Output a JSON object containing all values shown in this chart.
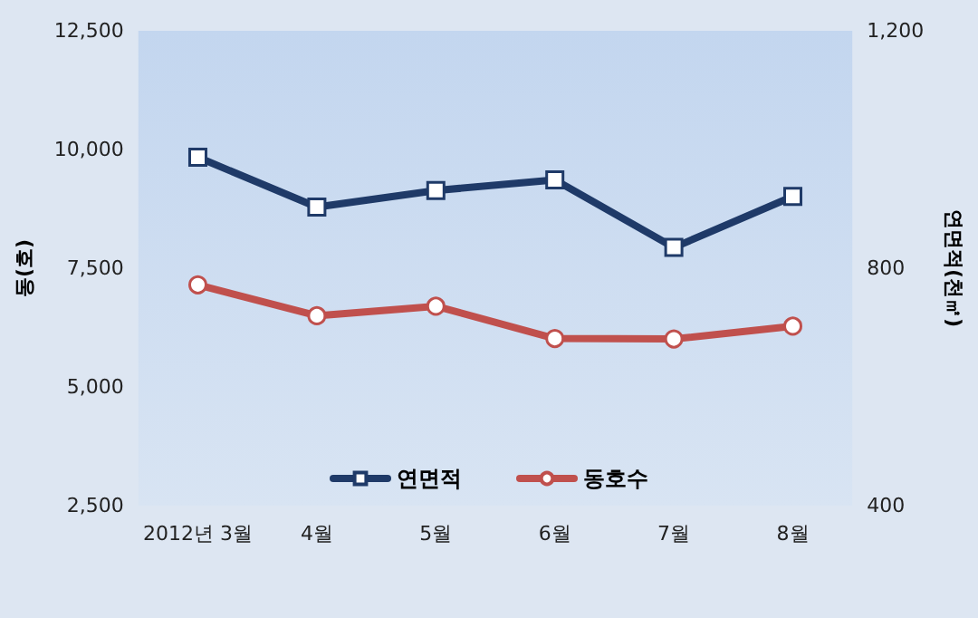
{
  "chart_data": {
    "type": "line",
    "categories": [
      "2012년 3월",
      "4월",
      "5월",
      "6월",
      "7월",
      "8월"
    ],
    "ylabel": "동(호)",
    "y2label": "연면적(천㎡)",
    "ylim": [
      2500,
      12500
    ],
    "yticks": [
      {
        "value": 2500,
        "label": "2,500"
      },
      {
        "value": 5000,
        "label": "5,000"
      },
      {
        "value": 7500,
        "label": "7,500"
      },
      {
        "value": 10000,
        "label": "10,000"
      },
      {
        "value": 12500,
        "label": "12,500"
      }
    ],
    "y2lim": [
      400,
      1200
    ],
    "y2ticks": [
      {
        "value": 400,
        "label": "400"
      },
      {
        "value": 800,
        "label": "800"
      },
      {
        "value": 1200,
        "label": "1,200"
      }
    ],
    "series": [
      {
        "name": "연면적",
        "color": "#1f3a68",
        "axis": "y2",
        "marker": "square",
        "values": [
          987,
          903,
          931,
          949,
          835,
          921
        ]
      },
      {
        "name": "동호수",
        "color": "#c0504d",
        "axis": "y",
        "marker": "circle",
        "values": [
          7150,
          6500,
          6700,
          6020,
          6010,
          6280
        ]
      }
    ],
    "legend": "bottom",
    "grid": false
  }
}
